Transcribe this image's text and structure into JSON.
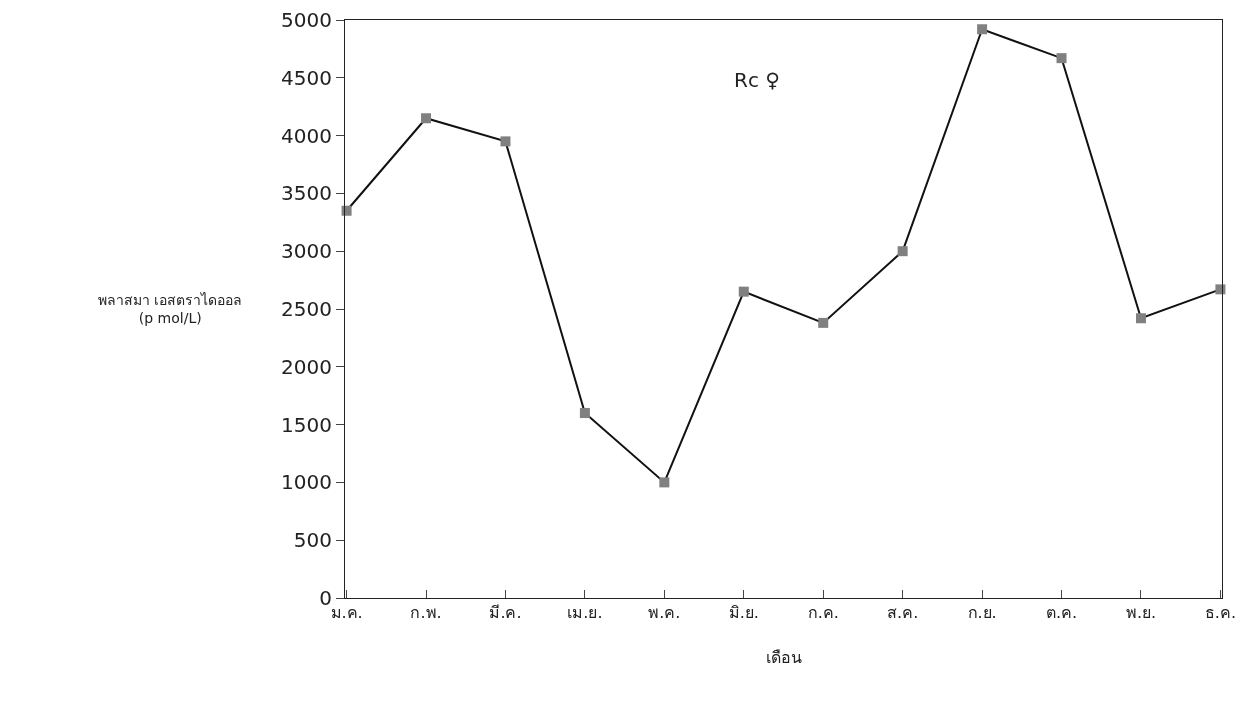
{
  "chart_data": {
    "type": "line",
    "xlabel": "เดือน",
    "ylabel": "พลาสมา เอสตราไดออล\n(p mol/L)",
    "annotations": [
      "Rc ♀"
    ],
    "categories": [
      "ม.ค.",
      "ก.พ.",
      "มี.ค.",
      "เม.ย.",
      "พ.ค.",
      "มิ.ย.",
      "ก.ค.",
      "ส.ค.",
      "ก.ย.",
      "ต.ค.",
      "พ.ย.",
      "ธ.ค."
    ],
    "series": [
      {
        "color": "#808080",
        "values": [
          3350,
          4150,
          3950,
          1600,
          1000,
          2650,
          2380,
          3000,
          4920,
          4670,
          2420,
          2670
        ]
      }
    ],
    "ylim": [
      0,
      5000
    ],
    "yticks": [
      0,
      500,
      1000,
      1500,
      2000,
      2500,
      3000,
      3500,
      4000,
      4500,
      5000
    ],
    "grid": false,
    "marker": "square",
    "line_style": "solid"
  }
}
